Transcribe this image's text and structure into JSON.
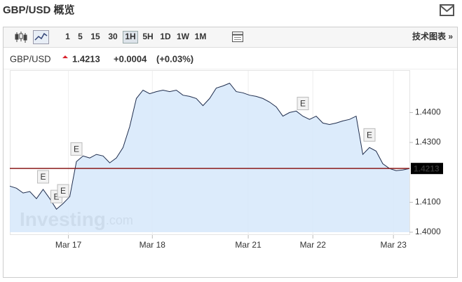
{
  "header": {
    "title": "GBP/USD 概览"
  },
  "toolbar": {
    "intervals": [
      "1",
      "5",
      "15",
      "30",
      "1H",
      "5H",
      "1D",
      "1W",
      "1M"
    ],
    "selected": "1H",
    "link": "技术图表 »"
  },
  "quote": {
    "symbol": "GBP/USD",
    "change": "+0.0004",
    "change_pct": "(+0.03%)"
  },
  "chart_data": {
    "type": "area",
    "color": "#1f2d4d",
    "fill": "#d6e8fa",
    "values": [
      1.4154,
      1.4147,
      1.4131,
      1.4136,
      1.4112,
      1.4143,
      1.4112,
      1.4077,
      1.4096,
      1.4119,
      1.4236,
      1.4255,
      1.4248,
      1.426,
      1.4255,
      1.4232,
      1.4248,
      1.4283,
      1.4353,
      1.4447,
      1.4475,
      1.4463,
      1.447,
      1.4475,
      1.447,
      1.4475,
      1.4458,
      1.4454,
      1.4447,
      1.4423,
      1.4447,
      1.4482,
      1.4489,
      1.4498,
      1.447,
      1.4466,
      1.4458,
      1.4454,
      1.4447,
      1.4435,
      1.4419,
      1.4388,
      1.44,
      1.4405,
      1.4388,
      1.4377,
      1.4388,
      1.4365,
      1.436,
      1.4365,
      1.4372,
      1.4377,
      1.4388,
      1.426,
      1.4283,
      1.4271,
      1.4229,
      1.4213,
      1.4206,
      1.4208,
      1.4213
    ],
    "xlim": [
      0,
      60
    ],
    "xticks": [
      {
        "value": 8.8,
        "label": "Mar 17"
      },
      {
        "value": 21.4,
        "label": "Mar 18"
      },
      {
        "value": 35.8,
        "label": "Mar 21"
      },
      {
        "value": 45.5,
        "label": "Mar 22"
      },
      {
        "value": 57.6,
        "label": "Mar 23"
      }
    ],
    "ylim": [
      1.4,
      1.453
    ],
    "yticks": [
      {
        "value": 1.4,
        "label": "1.4000"
      },
      {
        "value": 1.41,
        "label": "1.4100"
      },
      {
        "value": 1.43,
        "label": "1.4300"
      },
      {
        "value": 1.44,
        "label": "1.4400"
      }
    ],
    "last_price": 1.4213,
    "last_color": "#8b1a1a",
    "annotations": [
      {
        "text": "E",
        "x": 5
      },
      {
        "text": "E",
        "x": 7
      },
      {
        "text": "E",
        "x": 8
      },
      {
        "text": "E",
        "x": 10
      },
      {
        "text": "E",
        "x": 44
      },
      {
        "text": "E",
        "x": 54
      }
    ],
    "watermark": [
      "Investing",
      ".com"
    ]
  }
}
